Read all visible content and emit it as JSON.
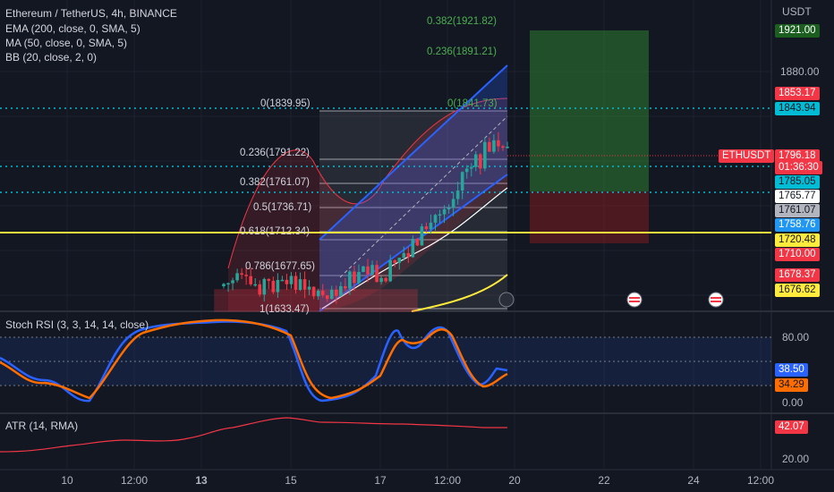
{
  "header": {
    "title": "Ethereum / TetherUS, 4h, BINANCE",
    "indicators": [
      "EMA (200, close, 0, SMA, 5)",
      "MA (50, close, 0, SMA, 5)",
      "BB (20, close, 2, 0)"
    ]
  },
  "price_axis": {
    "currency": "USDT",
    "ticks": [
      "1880.00"
    ],
    "tags": [
      {
        "text": "1921.00",
        "bg": "#1b5e20",
        "fg": "#ffffff",
        "name": "price-tag-target"
      },
      {
        "text": "1853.17",
        "bg": "#f23645",
        "fg": "#ffffff",
        "name": "price-tag-bb-upper"
      },
      {
        "text": "1843.94",
        "bg": "#00bcd4",
        "fg": "#131722",
        "name": "price-tag-level-1"
      },
      {
        "text": "1796.18",
        "bg": "#f23645",
        "fg": "#ffffff",
        "name": "price-tag-last"
      },
      {
        "text": "01:36:30",
        "bg": "#f23645",
        "fg": "#ffffff",
        "name": "countdown-tag"
      },
      {
        "text": "1785.05",
        "bg": "#00bcd4",
        "fg": "#131722",
        "name": "price-tag-level-2"
      },
      {
        "text": "1765.77",
        "bg": "#ffffff",
        "fg": "#131722",
        "name": "price-tag-ma"
      },
      {
        "text": "1761.07",
        "bg": "#b2b5be",
        "fg": "#131722",
        "name": "price-tag-fib"
      },
      {
        "text": "1758.76",
        "bg": "#2196f3",
        "fg": "#ffffff",
        "name": "price-tag-bb-lower"
      },
      {
        "text": "1720.48",
        "bg": "#ffeb3b",
        "fg": "#131722",
        "name": "price-tag-yellow-line"
      },
      {
        "text": "1710.00",
        "bg": "#f23645",
        "fg": "#ffffff",
        "name": "price-tag-stop"
      },
      {
        "text": "1678.37",
        "bg": "#f23645",
        "fg": "#ffffff",
        "name": "price-tag-level-3"
      },
      {
        "text": "1676.62",
        "bg": "#ffeb3b",
        "fg": "#131722",
        "name": "price-tag-ema"
      }
    ],
    "symbol_tag": "ETHUSDT"
  },
  "fib_labels": [
    {
      "text": "0.382(1921.82)",
      "green": true
    },
    {
      "text": "0.236(1891.21)",
      "green": true
    },
    {
      "text": "0(1839.95)",
      "green": false
    },
    {
      "text": "0(1841.73)",
      "green": true
    },
    {
      "text": "0.236(1791.22)",
      "green": false
    },
    {
      "text": "0.382(1761.07)",
      "green": false
    },
    {
      "text": "0.5(1736.71)",
      "green": false
    },
    {
      "text": "0.618(1712.34)",
      "green": false
    },
    {
      "text": "0.786(1677.65)",
      "green": false
    },
    {
      "text": "1(1633.47)",
      "green": false
    }
  ],
  "stoch": {
    "label": "Stoch RSI (3, 3, 14, 14, close)",
    "ticks": [
      "80.00",
      "0.00"
    ],
    "k_value": "38.50",
    "d_value": "34.29",
    "k_color": "#2962ff",
    "d_color": "#ff6d00"
  },
  "atr": {
    "label": "ATR (14, RMA)",
    "value": "42.07",
    "tick": "20.00",
    "color": "#f23645"
  },
  "time_axis": [
    "10",
    "12:00",
    "13",
    "15",
    "17",
    "12:00",
    "20",
    "22",
    "24",
    "12:00"
  ],
  "colors": {
    "up": "#26a69a",
    "down": "#f23645",
    "background": "#131722",
    "yellow": "#ffeb3b",
    "cyan": "#00bcd4"
  }
}
